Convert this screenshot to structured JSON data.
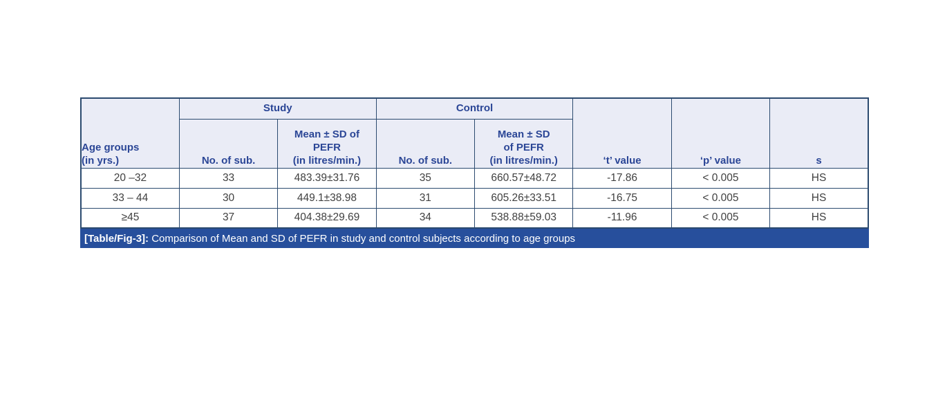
{
  "colors": {
    "border": "#2b4a6f",
    "header_bg": "#eaecf6",
    "header_text": "#2b4696",
    "data_text": "#404040",
    "caption_bg": "#274f9c",
    "caption_text": "#ffffff"
  },
  "table": {
    "group_headers": {
      "study": "Study",
      "control": "Control"
    },
    "columns": {
      "age_groups": "Age groups\n(in yrs.)",
      "no_of_sub_study": "No. of sub.",
      "mean_sd_study": "Mean ± SD of\nPEFR\n(in litres/min.)",
      "no_of_sub_control": "No. of sub.",
      "mean_sd_control": "Mean ± SD\nof PEFR\n(in litres/min.)",
      "t_value": "‘t’ value",
      "p_value": "‘p’ value",
      "s": "s"
    },
    "rows": [
      {
        "age": "20 –32",
        "study_n": "33",
        "study_mean_sd": "483.39±31.76",
        "control_n": "35",
        "control_mean_sd": "660.57±48.72",
        "t": "-17.86",
        "p": "< 0.005",
        "s": "HS"
      },
      {
        "age": "33 – 44",
        "study_n": "30",
        "study_mean_sd": "449.1±38.98",
        "control_n": "31",
        "control_mean_sd": "605.26±33.51",
        "t": "-16.75",
        "p": "< 0.005",
        "s": "HS"
      },
      {
        "age": "≥45",
        "study_n": "37",
        "study_mean_sd": "404.38±29.69",
        "control_n": "34",
        "control_mean_sd": "538.88±59.03",
        "t": "-11.96",
        "p": "< 0.005",
        "s": "HS"
      }
    ],
    "caption": {
      "label": "[Table/Fig-3]:",
      "text": " Comparison of Mean and SD of PEFR in study and control subjects according to age groups"
    }
  }
}
